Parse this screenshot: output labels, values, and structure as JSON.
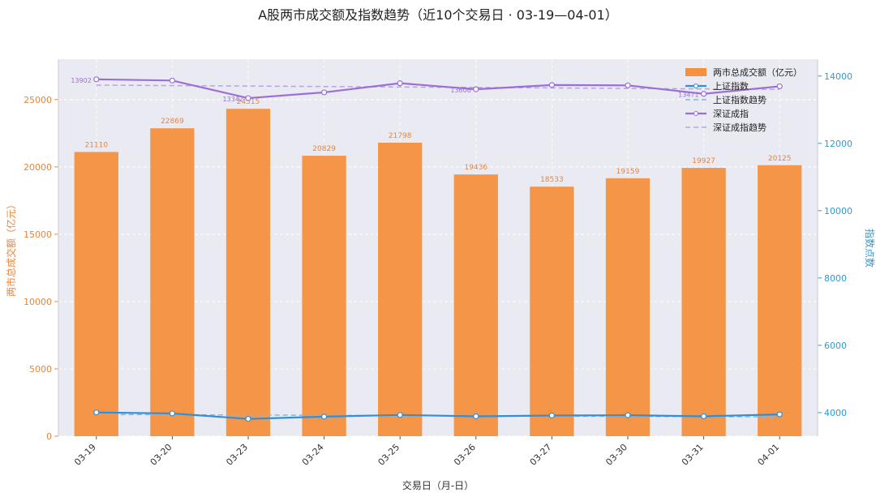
{
  "chart_data": {
    "type": "bar",
    "title": "A股两市成交额及指数趋势（近10个交易日 · 03-19—04-01）",
    "xlabel": "交易日（月-日）",
    "ylabel_left": "两市总成交额（亿元）",
    "ylabel_right": "指数点数",
    "categories": [
      "03-19",
      "03-20",
      "03-23",
      "03-24",
      "03-25",
      "03-26",
      "03-27",
      "03-30",
      "03-31",
      "04-01"
    ],
    "ylim_left": [
      0,
      28000
    ],
    "yticks_left": [
      "0",
      "5000",
      "10000",
      "15000",
      "20000",
      "25000"
    ],
    "ylim_right": [
      3300,
      14500
    ],
    "yticks_right": [
      "4000",
      "6000",
      "8000",
      "10000",
      "12000",
      "14000"
    ],
    "grid": true,
    "legend_position": "top-right",
    "series": [
      {
        "name": "两市总成交额（亿元）",
        "kind": "bar",
        "axis": "left",
        "color": "#F5903E",
        "values": [
          21110,
          22869,
          24315,
          20829,
          21798,
          19436,
          18533,
          19159,
          19927,
          20125
        ],
        "labels": [
          "21110",
          "22869",
          "24315",
          "20829",
          "21798",
          "19436",
          "18533",
          "19159",
          "19927",
          "20125"
        ]
      },
      {
        "name": "上证指数",
        "kind": "line",
        "axis": "right",
        "color": "#2F8FD8",
        "values": [
          4006,
          3976,
          3813,
          3881,
          3931,
          3890,
          3914,
          3923,
          3891,
          3948
        ]
      },
      {
        "name": "上证指数趋势",
        "kind": "trend",
        "axis": "right",
        "color": "#7FB8E8",
        "values": [
          3945,
          3937,
          3929,
          3921,
          3913,
          3905,
          3897,
          3889,
          3881,
          3873
        ]
      },
      {
        "name": "深证成指",
        "kind": "line",
        "axis": "right",
        "color": "#9B70D6",
        "values": [
          13902,
          13866,
          13342,
          13514,
          13786,
          13606,
          13733,
          13722,
          13471,
          13694
        ],
        "labels": [
          "13902",
          "",
          "13342",
          "",
          "",
          "13606",
          "",
          "",
          "13471",
          ""
        ]
      },
      {
        "name": "深证成指趋势",
        "kind": "trend",
        "axis": "right",
        "color": "#B9A2E3",
        "values": [
          13730,
          13716,
          13702,
          13688,
          13674,
          13660,
          13646,
          13632,
          13618,
          13604
        ]
      }
    ]
  }
}
